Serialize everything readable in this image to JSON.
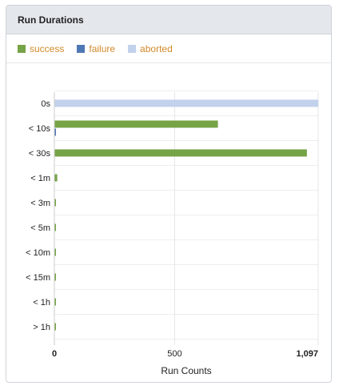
{
  "panel": {
    "title": "Run Durations"
  },
  "colors": {
    "success": "#77a347",
    "failure": "#4f77b3",
    "aborted": "#c2d1ec"
  },
  "chart_data": {
    "type": "bar",
    "orientation": "horizontal",
    "title": "",
    "xlabel": "Run Counts",
    "ylabel": "",
    "xlim": [
      0,
      1097
    ],
    "x_ticks": [
      0,
      500,
      1097
    ],
    "x_tick_labels": [
      "0",
      "500",
      "1,097"
    ],
    "categories": [
      "0s",
      "< 10s",
      "< 30s",
      "< 1m",
      "< 3m",
      "< 5m",
      "< 10m",
      "< 15m",
      "< 1h",
      "> 1h"
    ],
    "series": [
      {
        "name": "success",
        "values": [
          0,
          680,
          1050,
          12,
          3,
          2,
          2,
          2,
          2,
          2
        ]
      },
      {
        "name": "failure",
        "values": [
          0,
          5,
          0,
          0,
          0,
          0,
          0,
          0,
          0,
          0
        ]
      },
      {
        "name": "aborted",
        "values": [
          1097,
          0,
          0,
          0,
          0,
          0,
          0,
          0,
          0,
          0
        ]
      }
    ],
    "grid": true,
    "legend": "top-left"
  }
}
